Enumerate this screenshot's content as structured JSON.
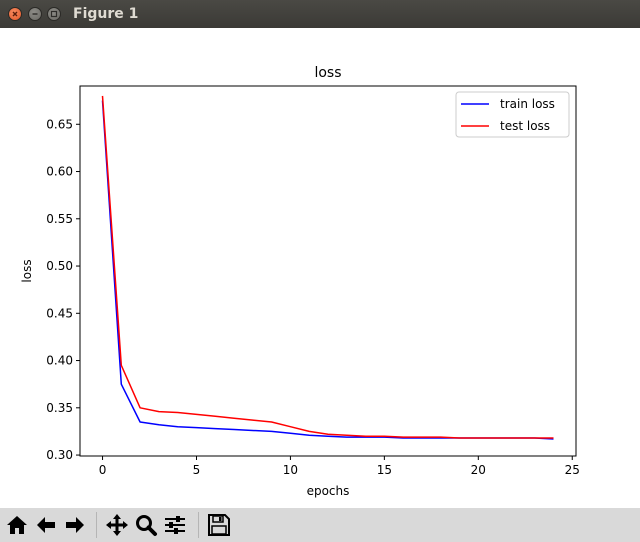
{
  "window": {
    "title": "Figure 1"
  },
  "toolbar": {
    "buttons": [
      {
        "name": "home",
        "icon": "home-icon"
      },
      {
        "name": "back",
        "icon": "arrow-left-icon"
      },
      {
        "name": "forward",
        "icon": "arrow-right-icon"
      },
      {
        "name": "pan",
        "icon": "move-icon"
      },
      {
        "name": "zoom",
        "icon": "magnifier-icon"
      },
      {
        "name": "configure-subplots",
        "icon": "sliders-icon"
      },
      {
        "name": "save",
        "icon": "floppy-disk-icon"
      }
    ]
  },
  "chart_data": {
    "type": "line",
    "title": "loss",
    "xlabel": "epochs",
    "ylabel": "loss",
    "xlim": [
      -1.2,
      25.2
    ],
    "ylim": [
      0.299,
      0.6905
    ],
    "xticks": [
      0,
      5,
      10,
      15,
      20,
      25
    ],
    "xtick_labels": [
      "0",
      "5",
      "10",
      "15",
      "20",
      "25"
    ],
    "yticks": [
      0.3,
      0.35,
      0.4,
      0.45,
      0.5,
      0.55,
      0.6,
      0.65
    ],
    "ytick_labels": [
      "0.30",
      "0.35",
      "0.40",
      "0.45",
      "0.50",
      "0.55",
      "0.60",
      "0.65"
    ],
    "grid": false,
    "legend_position": "top-right",
    "x": [
      0,
      1,
      2,
      3,
      4,
      5,
      6,
      7,
      8,
      9,
      10,
      11,
      12,
      13,
      14,
      15,
      16,
      17,
      18,
      19,
      20,
      21,
      22,
      23,
      24
    ],
    "series": [
      {
        "name": "train loss",
        "color": "#0000ff",
        "values": [
          0.675,
          0.375,
          0.335,
          0.332,
          0.33,
          0.329,
          0.328,
          0.327,
          0.326,
          0.325,
          0.323,
          0.321,
          0.32,
          0.319,
          0.319,
          0.319,
          0.318,
          0.318,
          0.318,
          0.318,
          0.318,
          0.318,
          0.318,
          0.318,
          0.317
        ]
      },
      {
        "name": "test loss",
        "color": "#ff0000",
        "values": [
          0.68,
          0.395,
          0.35,
          0.346,
          0.345,
          0.343,
          0.341,
          0.339,
          0.337,
          0.335,
          0.33,
          0.325,
          0.322,
          0.321,
          0.32,
          0.32,
          0.319,
          0.319,
          0.319,
          0.318,
          0.318,
          0.318,
          0.318,
          0.318,
          0.318
        ]
      }
    ]
  }
}
